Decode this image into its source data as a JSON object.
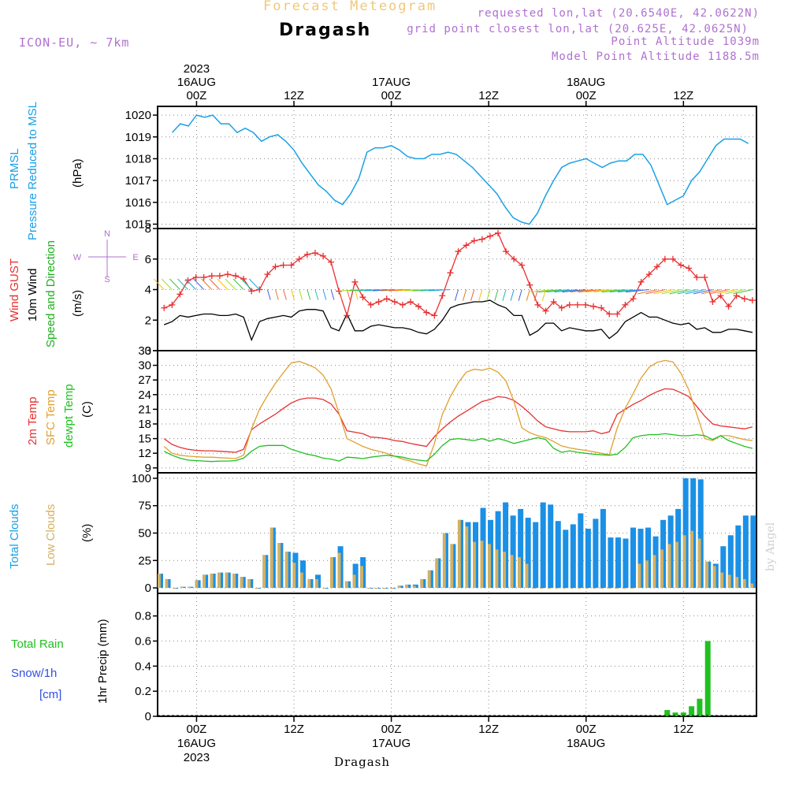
{
  "header": {
    "title": "Forecast Meteogram",
    "station": "Dragash",
    "model": "ICON-EU, ~ 7km",
    "requested": "requested lon,lat (20.6540E, 42.0622N)",
    "grid_point": "grid point closest lon,lat (20.625E, 42.0625N)",
    "point_alt": "Point Altitude 1039m",
    "model_alt": "Model Point Altitude 1188.5m"
  },
  "footer": {
    "station": "Dragash",
    "watermark": "by Angel"
  },
  "time_axis": {
    "top": [
      {
        "line1": "2023",
        "line2": "16AUG",
        "line3": "00Z",
        "h": 0
      },
      {
        "line1": "",
        "line2": "",
        "line3": "12Z",
        "h": 12
      },
      {
        "line1": "",
        "line2": "17AUG",
        "line3": "00Z",
        "h": 24
      },
      {
        "line1": "",
        "line2": "",
        "line3": "12Z",
        "h": 36
      },
      {
        "line1": "",
        "line2": "18AUG",
        "line3": "00Z",
        "h": 48
      },
      {
        "line1": "",
        "line2": "",
        "line3": "12Z",
        "h": 60
      }
    ],
    "bottom": [
      {
        "line1": "00Z",
        "line2": "16AUG",
        "line3": "2023",
        "h": 0
      },
      {
        "line1": "12Z",
        "line2": "",
        "line3": "",
        "h": 12
      },
      {
        "line1": "00Z",
        "line2": "17AUG",
        "line3": "",
        "h": 24
      },
      {
        "line1": "12Z",
        "line2": "",
        "line3": "",
        "h": 36
      },
      {
        "line1": "00Z",
        "line2": "18AUG",
        "line3": "",
        "h": 48
      },
      {
        "line1": "12Z",
        "line2": "",
        "line3": "",
        "h": 60
      }
    ]
  },
  "panels": {
    "pressure": {
      "label1": "PRMSL",
      "label2": "Pressure Reduced to MSL",
      "unit": "(hPa)",
      "color": "#1aa0e6"
    },
    "wind": {
      "label_gust": "Wind GUST",
      "label_wind": "10m Wind",
      "label_dir": "Speed and Direction",
      "unit": "(m/s)",
      "rose_w": "W",
      "rose_e": "E",
      "rose_n": "N",
      "rose_s": "S",
      "gust_color": "#e83030",
      "wind_color": "#000000",
      "dir_color": "#20b020"
    },
    "temp": {
      "label_t": "2m Temp",
      "label_sfc": "SFC Temp",
      "label_dew": "dewpt Temp",
      "unit": "(C)",
      "t_color": "#e83030",
      "sfc_color": "#e0a030",
      "dew_color": "#20c020"
    },
    "clouds": {
      "label_total": "Total Clouds",
      "label_low": "Low Clouds",
      "unit": "(%)",
      "total_color": "#1a90e6",
      "low_color": "#d4b060"
    },
    "precip": {
      "label_rain": "Total   Rain",
      "label_snow": "Snow/1h",
      "label_cm": "[cm]",
      "label_precip": "1hr Precip (mm)",
      "rain_color": "#20c020",
      "snow_color": "#3050e0"
    }
  },
  "chart_data": [
    {
      "type": "line",
      "name": "pressure",
      "ylabel": "(hPa)",
      "ylim": [
        1014.8,
        1020.4
      ],
      "yticks": [
        1015,
        1016,
        1017,
        1018,
        1019,
        1020
      ],
      "x_hours_start": -3,
      "x_hours_end": 69,
      "series": [
        {
          "name": "PRMSL",
          "x": [
            -3,
            -2,
            -1,
            0,
            1,
            2,
            3,
            4,
            5,
            6,
            7,
            8,
            9,
            10,
            11,
            12,
            13,
            14,
            15,
            16,
            17,
            18,
            19,
            20,
            21,
            22,
            23,
            24,
            25,
            26,
            27,
            28,
            29,
            30,
            31,
            32,
            33,
            34,
            35,
            36,
            37,
            38,
            39,
            40,
            41,
            42,
            43,
            44,
            45,
            46,
            47,
            48,
            49,
            50,
            51,
            52,
            53,
            54,
            55,
            56,
            57,
            58,
            59,
            60,
            61,
            62,
            63,
            64,
            65,
            66,
            67,
            68
          ],
          "values": [
            1019.2,
            1019.6,
            1019.5,
            1020.0,
            1019.9,
            1020.0,
            1019.6,
            1019.6,
            1019.2,
            1019.4,
            1019.2,
            1018.8,
            1019.0,
            1019.1,
            1018.8,
            1018.4,
            1017.8,
            1017.3,
            1016.8,
            1016.5,
            1016.1,
            1015.9,
            1016.4,
            1017.1,
            1018.3,
            1018.5,
            1018.5,
            1018.6,
            1018.4,
            1018.1,
            1018.0,
            1018.0,
            1018.2,
            1018.2,
            1018.3,
            1018.2,
            1017.9,
            1017.6,
            1017.2,
            1016.8,
            1016.4,
            1015.8,
            1015.3,
            1015.1,
            1015.0,
            1015.5,
            1016.3,
            1017.0,
            1017.6,
            1017.8,
            1017.9,
            1018.0,
            1017.8,
            1017.6,
            1017.8,
            1017.9,
            1017.9,
            1018.2,
            1018.2,
            1017.7,
            1016.8,
            1015.9,
            1016.1,
            1016.3,
            1017.0,
            1017.4,
            1018.0,
            1018.6,
            1018.9,
            1018.9,
            1018.9,
            1018.7
          ]
        }
      ]
    },
    {
      "type": "line",
      "name": "wind",
      "ylabel": "(m/s)",
      "ylim": [
        0,
        8
      ],
      "yticks": [
        0,
        2,
        4,
        6,
        8
      ],
      "series": [
        {
          "name": "Wind GUST",
          "values": [
            2.8,
            3.0,
            3.7,
            4.6,
            4.8,
            4.8,
            4.9,
            4.9,
            5.0,
            4.9,
            4.7,
            3.9,
            4.0,
            5.0,
            5.5,
            5.6,
            5.6,
            6.0,
            6.3,
            6.4,
            6.2,
            5.8,
            3.9,
            2.3,
            4.5,
            3.5,
            3.0,
            3.2,
            3.4,
            3.2,
            3.0,
            3.2,
            2.9,
            2.5,
            2.3,
            3.6,
            5.1,
            6.5,
            6.9,
            7.2,
            7.3,
            7.5,
            7.7,
            6.5,
            6.0,
            5.6,
            4.3,
            3.0,
            2.6,
            3.2,
            2.8,
            3.0,
            3.0,
            3.0,
            2.9,
            2.8,
            2.4,
            2.4,
            3.0,
            3.4,
            4.5,
            5.0,
            5.5,
            6.0,
            6.0,
            5.6,
            5.4,
            4.8,
            4.8,
            3.2,
            3.6,
            2.9,
            3.6,
            3.4,
            3.3
          ]
        },
        {
          "name": "10m Wind",
          "values": [
            1.7,
            1.9,
            2.3,
            2.2,
            2.3,
            2.4,
            2.4,
            2.3,
            2.3,
            2.4,
            2.2,
            0.7,
            1.9,
            2.1,
            2.2,
            2.3,
            2.2,
            2.6,
            2.7,
            2.7,
            2.6,
            1.5,
            1.3,
            2.4,
            1.3,
            1.3,
            1.6,
            1.7,
            1.6,
            1.5,
            1.5,
            1.4,
            1.2,
            1.1,
            1.4,
            2.0,
            2.8,
            3.0,
            3.1,
            3.2,
            3.2,
            3.3,
            3.0,
            2.8,
            2.3,
            2.3,
            1.0,
            1.3,
            1.8,
            1.8,
            1.3,
            1.5,
            1.4,
            1.3,
            1.3,
            1.4,
            0.8,
            1.2,
            1.9,
            2.2,
            2.5,
            2.2,
            2.2,
            2.0,
            1.8,
            1.7,
            1.8,
            1.4,
            1.5,
            1.2,
            1.2,
            1.4,
            1.4,
            1.3,
            1.2
          ]
        }
      ]
    },
    {
      "type": "line",
      "name": "temperature",
      "ylabel": "(C)",
      "ylim": [
        8,
        33
      ],
      "yticks": [
        9,
        12,
        15,
        18,
        21,
        24,
        27,
        30,
        33
      ],
      "series": [
        {
          "name": "2m Temp",
          "values": [
            15.0,
            13.8,
            13.2,
            12.8,
            12.6,
            12.5,
            12.5,
            12.4,
            12.3,
            12.2,
            12.8,
            16.8,
            18.0,
            19.0,
            20.0,
            21.2,
            22.3,
            23.0,
            23.3,
            23.3,
            23.0,
            22.1,
            20.0,
            16.6,
            16.3,
            16.0,
            15.3,
            15.2,
            15.0,
            14.6,
            14.4,
            14.0,
            13.7,
            13.4,
            15.4,
            17.0,
            18.4,
            19.6,
            20.6,
            21.6,
            22.6,
            23.0,
            23.6,
            23.4,
            22.8,
            21.6,
            20.2,
            18.6,
            17.4,
            17.0,
            16.6,
            16.4,
            16.4,
            16.4,
            16.6,
            16.0,
            16.4,
            20.0,
            21.0,
            22.0,
            22.8,
            23.8,
            24.6,
            25.2,
            25.1,
            24.4,
            23.6,
            21.6,
            19.6,
            18.0,
            17.6,
            17.4,
            17.2,
            17.0,
            17.4
          ]
        },
        {
          "name": "SFC Temp",
          "values": [
            13.4,
            12.0,
            11.6,
            11.4,
            11.3,
            11.2,
            11.2,
            11.1,
            11.0,
            10.9,
            11.6,
            17.0,
            21.0,
            23.8,
            26.3,
            28.5,
            30.5,
            30.8,
            30.2,
            29.5,
            28.0,
            25.2,
            20.2,
            15.0,
            14.2,
            13.4,
            12.8,
            12.4,
            12.0,
            11.4,
            10.8,
            10.4,
            9.8,
            9.4,
            14.0,
            20.0,
            23.6,
            26.4,
            28.6,
            29.2,
            29.0,
            29.4,
            28.6,
            26.8,
            22.6,
            17.2,
            16.2,
            15.6,
            15.2,
            14.4,
            13.5,
            13.1,
            12.8,
            12.6,
            12.3,
            12.0,
            11.7,
            17.2,
            21.2,
            24.2,
            27.4,
            29.6,
            30.6,
            31.0,
            30.7,
            28.4,
            25.0,
            20.0,
            15.0,
            14.6,
            15.6,
            15.6,
            15.2,
            14.8,
            14.6
          ]
        },
        {
          "name": "dewpt Temp",
          "values": [
            12.4,
            11.6,
            11.0,
            10.6,
            10.5,
            10.4,
            10.3,
            10.4,
            10.4,
            10.5,
            11.0,
            12.4,
            13.4,
            13.6,
            13.6,
            13.6,
            12.8,
            12.3,
            11.8,
            11.5,
            11.0,
            10.8,
            10.4,
            11.2,
            11.1,
            10.9,
            11.2,
            11.4,
            11.6,
            11.4,
            11.2,
            10.8,
            10.6,
            10.4,
            11.8,
            13.6,
            14.8,
            15.0,
            14.8,
            14.6,
            15.0,
            14.5,
            15.0,
            14.6,
            14.0,
            14.4,
            14.8,
            15.2,
            14.8,
            13.0,
            12.2,
            12.5,
            12.2,
            12.0,
            11.8,
            11.7,
            11.6,
            11.8,
            13.2,
            15.2,
            15.6,
            15.8,
            15.8,
            16.0,
            15.8,
            15.6,
            15.6,
            15.8,
            15.6,
            14.8,
            15.6,
            14.6,
            14.0,
            13.4,
            13.0
          ]
        }
      ]
    },
    {
      "type": "bar",
      "name": "clouds",
      "ylabel": "(%)",
      "ylim": [
        -5,
        105
      ],
      "yticks": [
        0,
        25,
        50,
        75,
        100
      ],
      "series": [
        {
          "name": "Total Clouds",
          "values": [
            13,
            8,
            0,
            1,
            1,
            7,
            12,
            13,
            14,
            14,
            13,
            10,
            8,
            0,
            30,
            55,
            41,
            33,
            32,
            25,
            8,
            12,
            0,
            28,
            38,
            6,
            22,
            28,
            0,
            0,
            0,
            0,
            2,
            3,
            3,
            8,
            16,
            27,
            50,
            40,
            62,
            60,
            60,
            73,
            62,
            70,
            78,
            66,
            72,
            64,
            60,
            78,
            76,
            61,
            53,
            58,
            68,
            54,
            63,
            72,
            46,
            46,
            45,
            55,
            54,
            55,
            47,
            62,
            66,
            72,
            100,
            100,
            99,
            24,
            22,
            38,
            48,
            57,
            66,
            66
          ]
        },
        {
          "name": "Low Clouds",
          "values": [
            13,
            8,
            0,
            1,
            1,
            7,
            12,
            13,
            14,
            14,
            13,
            10,
            8,
            0,
            30,
            55,
            41,
            33,
            23,
            14,
            8,
            8,
            0,
            28,
            32,
            6,
            12,
            20,
            0,
            0,
            0,
            0,
            2,
            3,
            2,
            8,
            16,
            27,
            50,
            40,
            62,
            56,
            42,
            43,
            40,
            35,
            33,
            30,
            28,
            22,
            0,
            0,
            0,
            0,
            0,
            0,
            0,
            0,
            0,
            0,
            0,
            0,
            0,
            0,
            22,
            25,
            30,
            35,
            40,
            42,
            48,
            52,
            45,
            24,
            20,
            14,
            12,
            10,
            8,
            4
          ]
        }
      ]
    },
    {
      "type": "bar",
      "name": "precipitation",
      "ylabel": "1hr Precip (mm)",
      "ylim": [
        0,
        0.98
      ],
      "yticks": [
        0,
        0.2,
        0.4,
        0.6,
        0.8
      ],
      "series": [
        {
          "name": "Total Rain",
          "x": [
            58,
            59,
            60,
            61,
            62,
            63,
            64
          ],
          "values": [
            0.05,
            0.03,
            0.03,
            0.08,
            0.14,
            0.6,
            0.0
          ]
        },
        {
          "name": "Snow/1h",
          "values": []
        }
      ]
    }
  ]
}
